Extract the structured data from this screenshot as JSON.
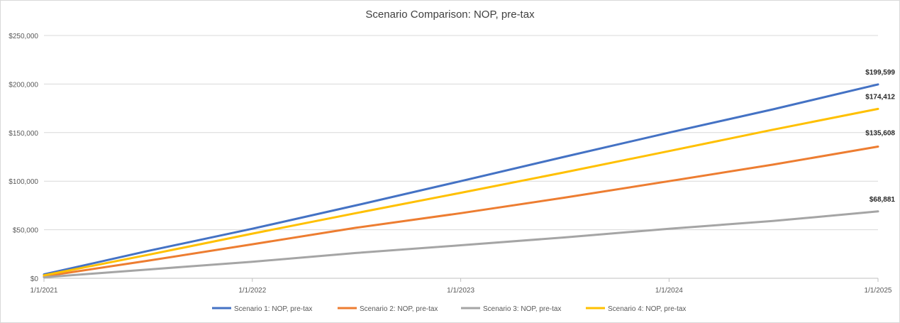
{
  "chart_data": {
    "type": "line",
    "title": "Scenario Comparison: NOP, pre-tax",
    "xlabel": "",
    "ylabel": "",
    "x_ticks": [
      "1/1/2021",
      "1/1/2022",
      "1/1/2023",
      "1/1/2024",
      "1/1/2025"
    ],
    "xlim": [
      "2021-01-01",
      "2025-01-01"
    ],
    "y_ticks": [
      "$0",
      "$50,000",
      "$100,000",
      "$150,000",
      "$200,000",
      "$250,000"
    ],
    "ylim": [
      0,
      250000
    ],
    "grid": "horizontal",
    "legend_position": "bottom",
    "x": [
      "2021-01-01",
      "2021-07-01",
      "2022-01-01",
      "2022-07-01",
      "2023-01-01",
      "2023-07-01",
      "2024-01-01",
      "2024-07-01",
      "2025-01-01"
    ],
    "series": [
      {
        "name": "Scenario 1: NOP, pre-tax",
        "color": "#4472c4",
        "values": [
          4000,
          28000,
          51000,
          75000,
          100000,
          125000,
          150000,
          174000,
          199599
        ],
        "end_label": "$199,599"
      },
      {
        "name": "Scenario 2: NOP, pre-tax",
        "color": "#ed7d31",
        "values": [
          2000,
          18000,
          35000,
          52000,
          67000,
          83000,
          100000,
          117000,
          135608
        ],
        "end_label": "$135,608"
      },
      {
        "name": "Scenario 3: NOP, pre-tax",
        "color": "#a5a5a5",
        "values": [
          1000,
          9000,
          17000,
          26000,
          34000,
          42000,
          51000,
          59000,
          68881
        ],
        "end_label": "$68,881"
      },
      {
        "name": "Scenario 4: NOP, pre-tax",
        "color": "#ffc000",
        "values": [
          3000,
          24000,
          46000,
          67000,
          88000,
          109000,
          131000,
          153000,
          174412
        ],
        "end_label": "$174,412"
      }
    ]
  }
}
